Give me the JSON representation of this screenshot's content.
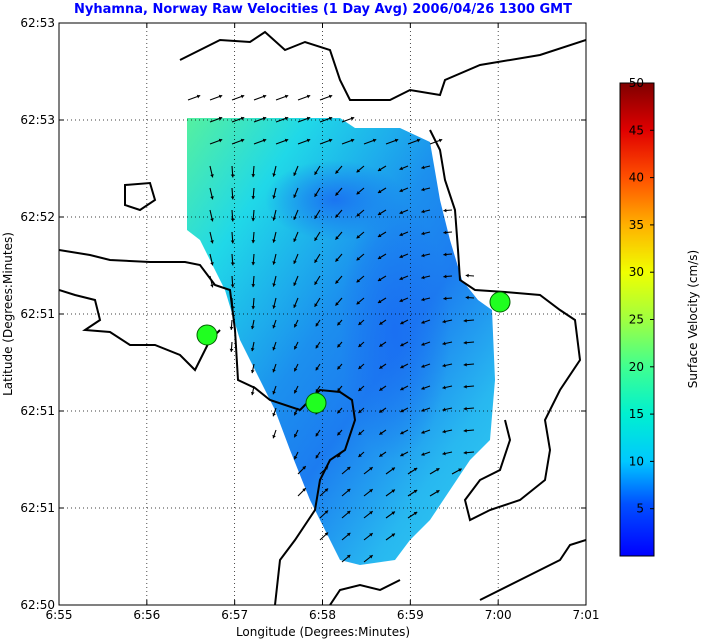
{
  "chart_data": {
    "type": "vector-field",
    "title": "Nyhamna, Norway Raw Velocities (1 Day Avg) 2006/04/26 1300 GMT",
    "xlabel": "Longitude (Degrees:Minutes)",
    "ylabel": "Latitude (Degrees:Minutes)",
    "x_ticks": [
      "6:55",
      "6:56",
      "6:57",
      "6:58",
      "6:59",
      "7:00",
      "7:01"
    ],
    "y_ticks": [
      "62:53",
      "62:53",
      "62:52",
      "62:51",
      "62:51",
      "62:51",
      "62:50"
    ],
    "grid": true,
    "colorbar": {
      "label": "Surface Velocity (cm/s)",
      "range": [
        0,
        50
      ],
      "ticks": [
        "5",
        "10",
        "15",
        "20",
        "25",
        "30",
        "35",
        "40",
        "45",
        "50"
      ],
      "colormap": "jet"
    },
    "stations": [
      {
        "lon_min": 56.7,
        "lat_frac": 0.64
      },
      {
        "lon_min": 57.9,
        "lat_frac": 0.41
      },
      {
        "lon_min": 60.0,
        "lat_frac": 0.69
      }
    ]
  }
}
